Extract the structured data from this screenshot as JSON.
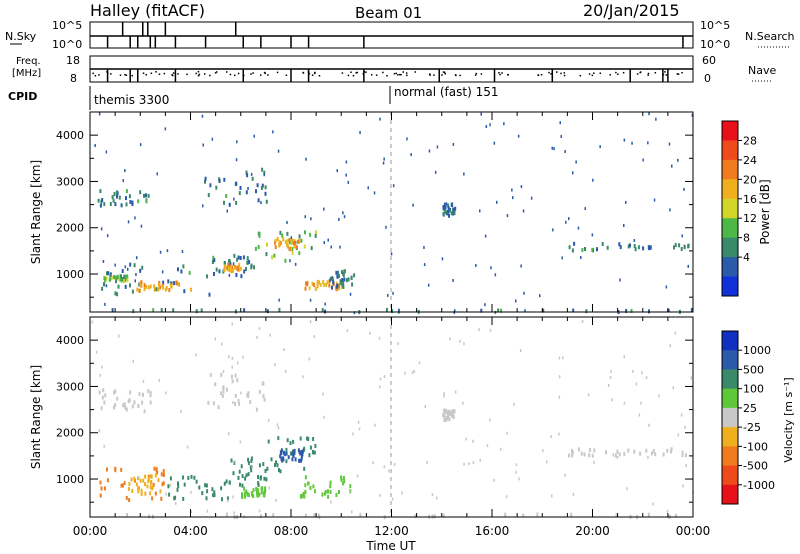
{
  "header": {
    "station": "Halley (fitACF)",
    "beam": "Beam 01",
    "date": "20/Jan/2015"
  },
  "top_panels": {
    "sky_label": "N.Sky",
    "search_label": "N.Search",
    "count_ticks": [
      "10^5",
      "10^0"
    ],
    "freq_label_1": "Freq.",
    "freq_label_2": "[MHz]",
    "freq_ticks": [
      "18",
      "8"
    ],
    "nave_label": "Nave",
    "nave_ticks": [
      "60",
      "0"
    ],
    "cpid_label": "CPID",
    "cpid_1": "themis 3300",
    "cpid_2": "normal (fast) 151"
  },
  "x_axis": {
    "label": "Time UT",
    "ticks": [
      "00:00",
      "04:00",
      "08:00",
      "12:00",
      "16:00",
      "20:00",
      "00:00"
    ]
  },
  "power_colorbar": {
    "label": "Power [dB]",
    "ticks": [
      "28",
      "24",
      "20",
      "16",
      "12",
      "8",
      "4"
    ],
    "colors": [
      "#e8101a",
      "#f04a1c",
      "#ef7c1e",
      "#f0b01e",
      "#d2d528",
      "#4cb848",
      "#3a8a6a",
      "#2a5aa8",
      "#1030d8"
    ]
  },
  "velocity_colorbar": {
    "label": "Velocity [m s⁻¹]",
    "ticks": [
      "1000",
      "500",
      "100",
      "25",
      "-25",
      "-100",
      "-500",
      "-1000"
    ],
    "colors": [
      "#1030c0",
      "#2a5aa8",
      "#3a8a6a",
      "#5ec83a",
      "#c8c8c8",
      "#f0b01e",
      "#ef7c1e",
      "#f04a1c",
      "#e8101a"
    ]
  },
  "chart_data": [
    {
      "type": "heatmap",
      "title": "",
      "xlabel": "Time UT",
      "ylabel": "Slant Range [km]",
      "x_range_hours": [
        0,
        24
      ],
      "ylim": [
        180,
        4500
      ],
      "y_ticks": [
        1000,
        2000,
        3000,
        4000
      ],
      "colorbar": "Power [dB]",
      "x_unit": "hours UT",
      "regions": [
        {
          "x": [
            0.3,
            4.8
          ],
          "y": [
            580,
            1250
          ],
          "value": 8
        },
        {
          "x": [
            1.8,
            4.0
          ],
          "y": [
            680,
            870
          ],
          "value": 20
        },
        {
          "x": [
            0.5,
            1.5
          ],
          "y": [
            880,
            1000
          ],
          "value": 12
        },
        {
          "x": [
            4.8,
            6.5
          ],
          "y": [
            950,
            1450
          ],
          "value": 8
        },
        {
          "x": [
            5.3,
            6.0
          ],
          "y": [
            1100,
            1250
          ],
          "value": 20
        },
        {
          "x": [
            6.5,
            9.0
          ],
          "y": [
            1300,
            1950
          ],
          "value": 12
        },
        {
          "x": [
            7.3,
            8.3
          ],
          "y": [
            1550,
            1800
          ],
          "value": 20
        },
        {
          "x": [
            8.5,
            10.0
          ],
          "y": [
            700,
            900
          ],
          "value": 20
        },
        {
          "x": [
            9.5,
            10.5
          ],
          "y": [
            750,
            1150
          ],
          "value": 8
        },
        {
          "x": [
            0.3,
            2.5
          ],
          "y": [
            2500,
            2850
          ],
          "value": 8
        },
        {
          "x": [
            4.5,
            7.0
          ],
          "y": [
            2500,
            3300
          ],
          "value": 8
        },
        {
          "x": [
            14.0,
            14.5
          ],
          "y": [
            2300,
            2550
          ],
          "value": 8
        },
        {
          "x": [
            19.0,
            24.0
          ],
          "y": [
            1550,
            1700
          ],
          "value": 8
        },
        {
          "x": [
            0.0,
            24.0
          ],
          "y": [
            220,
            280
          ],
          "value": 8
        }
      ]
    },
    {
      "type": "heatmap",
      "title": "",
      "xlabel": "Time UT",
      "ylabel": "Slant Range [km]",
      "x_range_hours": [
        0,
        24
      ],
      "ylim": [
        180,
        4500
      ],
      "y_ticks": [
        1000,
        2000,
        3000,
        4000
      ],
      "colorbar": "Velocity [m s⁻¹]",
      "x_unit": "hours UT",
      "regions": [
        {
          "x": [
            0.3,
            3.0
          ],
          "y": [
            580,
            1300
          ],
          "value": -500
        },
        {
          "x": [
            1.5,
            2.8
          ],
          "y": [
            700,
            1150
          ],
          "value": -100
        },
        {
          "x": [
            3.0,
            5.5
          ],
          "y": [
            600,
            1100
          ],
          "value": 100
        },
        {
          "x": [
            5.5,
            7.0
          ],
          "y": [
            900,
            1500
          ],
          "value": 100
        },
        {
          "x": [
            7.0,
            9.0
          ],
          "y": [
            1200,
            1950
          ],
          "value": 100
        },
        {
          "x": [
            7.5,
            8.5
          ],
          "y": [
            1400,
            1700
          ],
          "value": 500
        },
        {
          "x": [
            8.3,
            10.5
          ],
          "y": [
            650,
            1100
          ],
          "value": 25
        },
        {
          "x": [
            6.0,
            7.0
          ],
          "y": [
            650,
            850
          ],
          "value": 25
        },
        {
          "x": [
            0.3,
            2.5
          ],
          "y": [
            2500,
            3000
          ],
          "value": -25
        },
        {
          "x": [
            4.5,
            7.0
          ],
          "y": [
            2500,
            3300
          ],
          "value": -25
        },
        {
          "x": [
            14.0,
            14.5
          ],
          "y": [
            2300,
            2550
          ],
          "value": -25
        },
        {
          "x": [
            19.0,
            24.0
          ],
          "y": [
            1550,
            1700
          ],
          "value": -25
        },
        {
          "x": [
            0.0,
            24.0
          ],
          "y": [
            220,
            280
          ],
          "value": -25
        }
      ]
    }
  ]
}
